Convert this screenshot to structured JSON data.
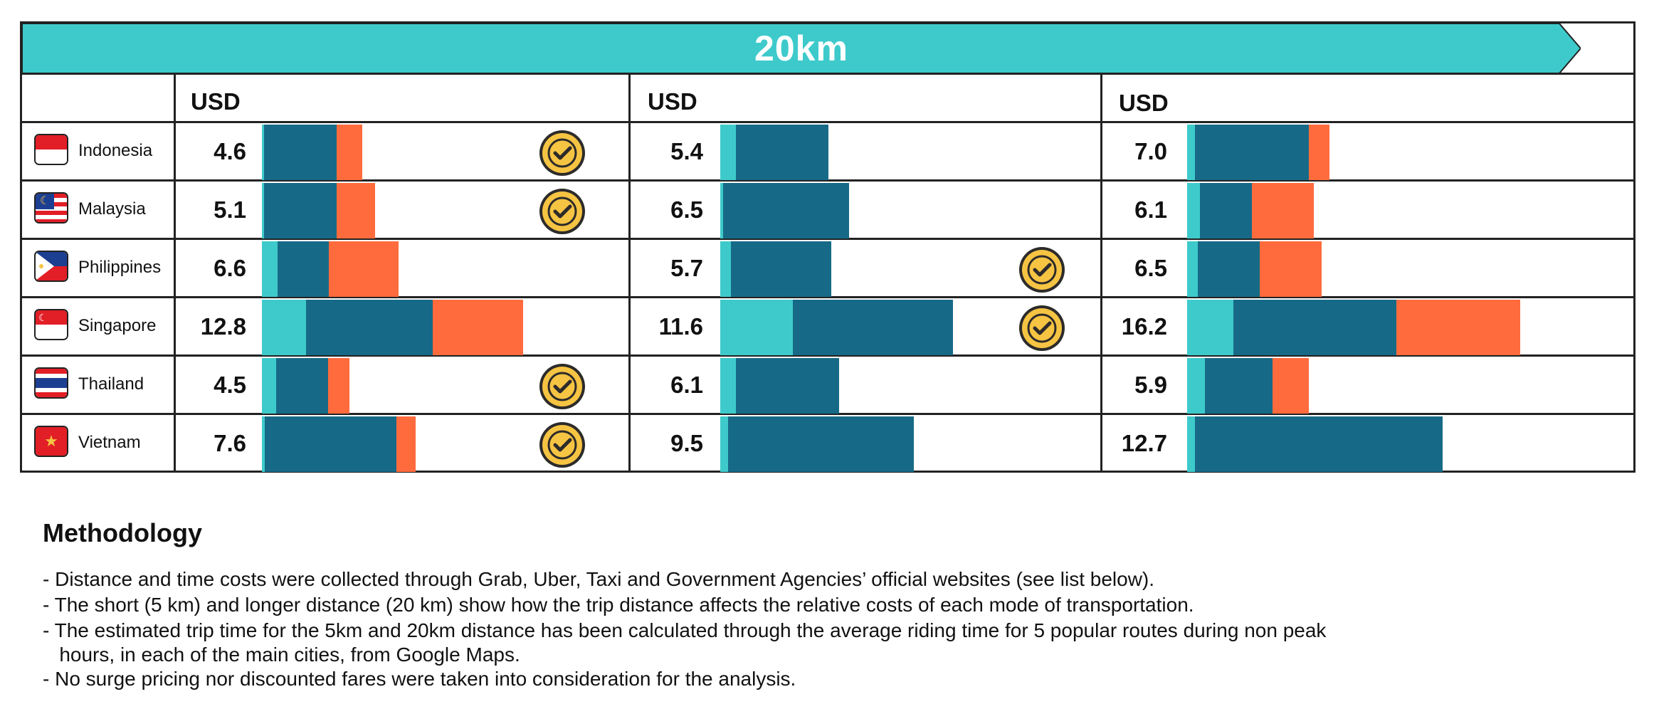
{
  "title": "20km",
  "currency_label": "USD",
  "colors": {
    "banner": "#3ecacb",
    "teal": "#3ecacb",
    "navy": "#176a87",
    "orange": "#ff6b3d",
    "check_gold": "#f6c443"
  },
  "chart_data": {
    "type": "bar",
    "title": "20km",
    "unit": "USD",
    "categories": [
      "Indonesia",
      "Malaysia",
      "Philippines",
      "Singapore",
      "Thailand",
      "Vietnam"
    ],
    "scale_max": 16.2,
    "panels": [
      {
        "label": "USD",
        "rows": [
          {
            "country": "Indonesia",
            "total": "4.6",
            "segments": [
              0.08,
              2.8,
              1.0
            ],
            "check": true
          },
          {
            "country": "Malaysia",
            "total": "5.1",
            "segments": [
              0.08,
              2.8,
              1.5
            ],
            "check": true
          },
          {
            "country": "Philippines",
            "total": "6.6",
            "segments": [
              0.6,
              2.0,
              2.7
            ],
            "check": false
          },
          {
            "country": "Singapore",
            "total": "12.8",
            "segments": [
              1.7,
              4.9,
              3.5
            ],
            "check": false
          },
          {
            "country": "Thailand",
            "total": "4.5",
            "segments": [
              0.55,
              2.0,
              0.85
            ],
            "check": true
          },
          {
            "country": "Vietnam",
            "total": "7.6",
            "segments": [
              0.1,
              5.1,
              0.75
            ],
            "check": true
          }
        ]
      },
      {
        "label": "USD",
        "rows": [
          {
            "country": "Indonesia",
            "total": "5.4",
            "segments": [
              0.6,
              3.6,
              0
            ],
            "check": false
          },
          {
            "country": "Malaysia",
            "total": "6.5",
            "segments": [
              0.1,
              4.9,
              0
            ],
            "check": false
          },
          {
            "country": "Philippines",
            "total": "5.7",
            "segments": [
              0.4,
              3.9,
              0
            ],
            "check": true
          },
          {
            "country": "Singapore",
            "total": "11.6",
            "segments": [
              2.8,
              6.2,
              0
            ],
            "check": true
          },
          {
            "country": "Thailand",
            "total": "6.1",
            "segments": [
              0.6,
              4.0,
              0
            ],
            "check": false
          },
          {
            "country": "Vietnam",
            "total": "9.5",
            "segments": [
              0.3,
              7.2,
              0
            ],
            "check": false
          }
        ]
      },
      {
        "label": "USD",
        "rows": [
          {
            "country": "Indonesia",
            "total": "7.0",
            "segments": [
              0.3,
              4.4,
              0.8
            ],
            "check": false
          },
          {
            "country": "Malaysia",
            "total": "6.1",
            "segments": [
              0.5,
              2.0,
              2.4
            ],
            "check": false
          },
          {
            "country": "Philippines",
            "total": "6.5",
            "segments": [
              0.4,
              2.4,
              2.4
            ],
            "check": false
          },
          {
            "country": "Singapore",
            "total": "16.2",
            "segments": [
              1.8,
              6.3,
              4.8
            ],
            "check": false
          },
          {
            "country": "Thailand",
            "total": "5.9",
            "segments": [
              0.7,
              2.6,
              1.4
            ],
            "check": false
          },
          {
            "country": "Vietnam",
            "total": "12.7",
            "segments": [
              0.3,
              9.6,
              0
            ],
            "check": false
          }
        ]
      }
    ]
  },
  "methodology": {
    "heading": "Methodology",
    "lines": [
      "- Distance and time costs were collected through Grab, Uber, Taxi and Government Agencies’ official websites (see list below).",
      "- The short (5 km) and longer distance (20 km) show how the trip distance affects the relative costs of each mode of transportation.",
      "- The estimated trip time for the 5km and 20km distance has been calculated through the average riding time for 5 popular routes during non peak",
      "   hours, in each of the main cities, from Google Maps.",
      "- No surge pricing nor discounted fares were taken into consideration for the analysis."
    ]
  }
}
